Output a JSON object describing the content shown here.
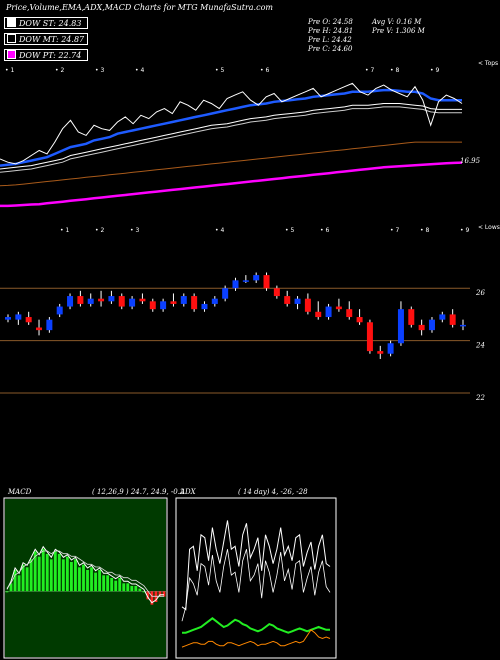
{
  "header": {
    "title": "Price,Volume,EMA,ADX,MACD Charts for MTG MunafaSutra.com"
  },
  "legend": [
    {
      "label": "DOW ST: 24.83",
      "color": "#ffffff"
    },
    {
      "label": "DOW MT: 24.87",
      "color": "#000000"
    },
    {
      "label": "DOW PT: 22.74",
      "color": "#ff00ff"
    }
  ],
  "quote": {
    "open": "Pre  O: 24.58",
    "high": "Pre  H: 24.81",
    "low": "Pre  L: 24.42",
    "close": "Pre  C: 24.60",
    "avg_vol": "Avg V: 0.16  M",
    "pre_vol": "Pre  V: 1.306  M"
  },
  "colors": {
    "up": "#0b40ff",
    "down": "#ff1010",
    "line": "#8a5a2a",
    "ema_fast": "#1e5bff",
    "ema_slow": "#ff00ff"
  },
  "chart_data": [
    {
      "type": "line",
      "name": "EMA panel",
      "right_top_label": "< Tops",
      "right_bottom_label": "< Lows",
      "price_label": "16.95",
      "x": [
        0,
        1,
        2,
        3,
        4,
        5,
        6,
        7,
        8,
        9,
        10,
        11,
        12,
        13,
        14,
        15,
        16,
        17,
        18,
        19,
        20,
        21,
        22,
        23,
        24,
        25,
        26,
        27,
        28,
        29,
        30,
        31,
        32,
        33,
        34,
        35,
        36,
        37,
        38,
        39,
        40,
        41,
        42,
        43,
        44,
        45,
        46,
        47,
        48,
        49,
        50,
        51,
        52,
        53,
        54,
        55,
        56,
        57,
        58,
        59
      ],
      "series": [
        {
          "key": "price",
          "values": [
            10,
            8,
            7,
            9,
            12,
            15,
            13,
            20,
            28,
            33,
            26,
            24,
            30,
            28,
            27,
            32,
            35,
            31,
            36,
            34,
            38,
            40,
            37,
            44,
            42,
            39,
            45,
            43,
            40,
            46,
            48,
            50,
            45,
            42,
            47,
            49,
            44,
            46,
            48,
            50,
            52,
            47,
            49,
            51,
            53,
            55,
            50,
            48,
            52,
            54,
            51,
            49,
            47,
            53,
            45,
            30,
            44,
            48,
            46,
            43
          ]
        },
        {
          "key": "ema_fast",
          "values": [
            6,
            6.5,
            7,
            8,
            9,
            10,
            11,
            13,
            15,
            17,
            18,
            19,
            21,
            22,
            23,
            25,
            26,
            27,
            28,
            29,
            30,
            31,
            32,
            33,
            34,
            35,
            36,
            37,
            38,
            39,
            40,
            41,
            42,
            42.5,
            43,
            44,
            44.5,
            45,
            45.5,
            46,
            47,
            47.5,
            48,
            48.5,
            49,
            50,
            50,
            50,
            50.5,
            51,
            51,
            50.5,
            50,
            50,
            49,
            46,
            45,
            45,
            45,
            45
          ]
        },
        {
          "key": "ema_mid",
          "values": [
            4,
            4.5,
            5,
            5.5,
            6,
            7,
            8,
            9,
            10,
            12,
            13,
            14,
            15,
            16,
            17,
            18,
            19,
            20,
            21,
            22,
            23,
            24,
            25,
            26,
            27,
            28,
            29,
            30,
            30.5,
            31,
            32,
            33,
            34,
            34.5,
            35,
            36,
            36.5,
            37,
            37.5,
            38,
            39,
            39.5,
            40,
            40.5,
            41,
            42,
            42,
            42,
            42.5,
            43,
            43,
            43,
            42.5,
            42,
            41.5,
            40,
            39.5,
            39.5,
            39.5,
            39.5
          ]
        },
        {
          "key": "ema_slow",
          "values": [
            -18,
            -18,
            -17.8,
            -17.5,
            -17.2,
            -17,
            -16.5,
            -16,
            -15.5,
            -15,
            -14.5,
            -14,
            -13.5,
            -13,
            -12.5,
            -12,
            -11.5,
            -11,
            -10.5,
            -10,
            -9.5,
            -9,
            -8.5,
            -8,
            -7.5,
            -7,
            -6.5,
            -6,
            -5.5,
            -5,
            -4.5,
            -4,
            -3.5,
            -3,
            -2.5,
            -2,
            -1.5,
            -1,
            -0.5,
            0,
            0.5,
            1,
            1.5,
            2,
            2.5,
            3,
            3.5,
            4,
            4.5,
            5,
            5.3,
            5.6,
            5.9,
            6.2,
            6.5,
            6.8,
            7.1,
            7.4,
            7.6,
            7.8
          ]
        },
        {
          "key": "ema_brown",
          "values": [
            -6,
            -5.8,
            -5.5,
            -5,
            -4.5,
            -4,
            -3.5,
            -3,
            -2.5,
            -2,
            -1.5,
            -1,
            -0.5,
            0,
            0.5,
            1,
            1.5,
            2,
            2.5,
            3,
            3.5,
            4,
            4.5,
            5,
            5.5,
            6,
            6.5,
            7,
            7.5,
            8,
            8.5,
            9,
            9.5,
            10,
            10.5,
            11,
            11.5,
            12,
            12.5,
            13,
            13.5,
            14,
            14.5,
            15,
            15.5,
            16,
            16.5,
            17,
            17.5,
            18,
            18.5,
            19,
            19.5,
            20,
            20,
            20,
            20,
            20,
            20,
            20
          ]
        }
      ]
    },
    {
      "type": "candlestick",
      "name": "price",
      "yticks": [
        "26",
        "24",
        "22"
      ],
      "ylim": [
        21.2,
        27.0
      ],
      "candles": [
        [
          0,
          24.8,
          25.0,
          24.7,
          24.9
        ],
        [
          1,
          24.8,
          25.1,
          24.6,
          25.0
        ],
        [
          2,
          24.9,
          25.1,
          24.6,
          24.7
        ],
        [
          3,
          24.5,
          24.8,
          24.2,
          24.4
        ],
        [
          4,
          24.4,
          24.9,
          24.3,
          24.8
        ],
        [
          5,
          25.0,
          25.4,
          24.9,
          25.3
        ],
        [
          6,
          25.3,
          25.8,
          25.2,
          25.7
        ],
        [
          7,
          25.7,
          25.9,
          25.3,
          25.4
        ],
        [
          8,
          25.4,
          25.8,
          25.3,
          25.6
        ],
        [
          9,
          25.6,
          25.9,
          25.3,
          25.5
        ],
        [
          10,
          25.5,
          25.9,
          25.4,
          25.7
        ],
        [
          11,
          25.7,
          25.8,
          25.2,
          25.3
        ],
        [
          12,
          25.3,
          25.7,
          25.2,
          25.6
        ],
        [
          13,
          25.6,
          25.8,
          25.4,
          25.5
        ],
        [
          14,
          25.5,
          25.6,
          25.1,
          25.2
        ],
        [
          15,
          25.2,
          25.6,
          25.1,
          25.5
        ],
        [
          16,
          25.5,
          25.8,
          25.3,
          25.4
        ],
        [
          17,
          25.4,
          25.8,
          25.3,
          25.7
        ],
        [
          18,
          25.7,
          25.8,
          25.1,
          25.2
        ],
        [
          19,
          25.2,
          25.5,
          25.1,
          25.4
        ],
        [
          20,
          25.4,
          25.7,
          25.3,
          25.6
        ],
        [
          21,
          25.6,
          26.1,
          25.5,
          26.0
        ],
        [
          22,
          26.0,
          26.4,
          25.9,
          26.3
        ],
        [
          23,
          26.3,
          26.5,
          26.2,
          26.3
        ],
        [
          24,
          26.3,
          26.6,
          26.2,
          26.5
        ],
        [
          25,
          26.5,
          26.6,
          25.9,
          26.0
        ],
        [
          26,
          26.0,
          26.1,
          25.6,
          25.7
        ],
        [
          27,
          25.7,
          25.9,
          25.3,
          25.4
        ],
        [
          28,
          25.4,
          25.7,
          25.2,
          25.6
        ],
        [
          29,
          25.6,
          25.8,
          25.0,
          25.1
        ],
        [
          30,
          25.1,
          25.5,
          24.8,
          24.9
        ],
        [
          31,
          24.9,
          25.4,
          24.8,
          25.3
        ],
        [
          32,
          25.3,
          25.6,
          25.1,
          25.2
        ],
        [
          33,
          25.2,
          25.5,
          24.8,
          24.9
        ],
        [
          34,
          24.9,
          25.2,
          24.6,
          24.7
        ],
        [
          35,
          24.7,
          24.8,
          23.5,
          23.6
        ],
        [
          36,
          23.6,
          23.8,
          23.3,
          23.5
        ],
        [
          37,
          23.5,
          24.0,
          23.4,
          23.9
        ],
        [
          38,
          23.9,
          25.5,
          23.8,
          25.2
        ],
        [
          39,
          25.2,
          25.3,
          24.5,
          24.6
        ],
        [
          40,
          24.6,
          24.8,
          24.2,
          24.4
        ],
        [
          41,
          24.4,
          24.9,
          24.3,
          24.8
        ],
        [
          42,
          24.8,
          25.1,
          24.7,
          25.0
        ],
        [
          43,
          25.0,
          25.2,
          24.5,
          24.6
        ],
        [
          44,
          24.6,
          24.8,
          24.4,
          24.6
        ]
      ]
    },
    {
      "type": "line",
      "name": "MACD",
      "title": "MACD",
      "params": "( 12,26,9 ) 24.7,  24.9,  -0.2",
      "macd": [
        0.0,
        0.3,
        0.8,
        0.6,
        1.0,
        0.9,
        1.2,
        1.5,
        1.3,
        1.6,
        1.4,
        1.2,
        1.5,
        1.4,
        1.2,
        1.3,
        1.1,
        1.2,
        0.9,
        1.0,
        0.8,
        0.9,
        0.7,
        0.8,
        0.6,
        0.6,
        0.5,
        0.4,
        0.5,
        0.3,
        0.3,
        0.2,
        0.2,
        0.1,
        0.0,
        -0.3,
        -0.5,
        -0.4,
        -0.2,
        -0.2
      ],
      "signal": [
        0.0,
        0.2,
        0.5,
        0.6,
        0.8,
        0.9,
        1.0,
        1.2,
        1.3,
        1.4,
        1.4,
        1.3,
        1.4,
        1.4,
        1.3,
        1.3,
        1.2,
        1.2,
        1.1,
        1.0,
        0.9,
        0.9,
        0.8,
        0.8,
        0.7,
        0.6,
        0.6,
        0.5,
        0.5,
        0.4,
        0.4,
        0.3,
        0.3,
        0.2,
        0.1,
        -0.1,
        -0.3,
        -0.3,
        -0.3,
        -0.3
      ],
      "ylim": [
        -2.5,
        3.5
      ]
    },
    {
      "type": "line",
      "name": "ADX",
      "title": "ADX",
      "params": "( 14  day) 4,  -26,  -28",
      "plus_di": [
        30,
        28,
        70,
        72,
        55,
        80,
        78,
        62,
        85,
        70,
        60,
        75,
        90,
        70,
        72,
        58,
        80,
        88,
        64,
        70,
        78,
        55,
        80,
        72,
        60,
        70,
        85,
        66,
        72,
        62,
        78,
        80,
        58,
        68,
        75,
        56,
        72,
        80,
        60,
        58
      ],
      "minus_di": [
        20,
        30,
        50,
        46,
        38,
        60,
        58,
        45,
        66,
        48,
        40,
        58,
        70,
        52,
        54,
        40,
        62,
        70,
        48,
        52,
        60,
        36,
        62,
        54,
        40,
        52,
        68,
        48,
        56,
        42,
        60,
        62,
        40,
        50,
        58,
        38,
        54,
        62,
        44,
        40
      ],
      "adx": [
        12,
        12,
        13,
        14,
        15,
        16,
        18,
        20,
        22,
        20,
        18,
        16,
        17,
        19,
        21,
        20,
        18,
        17,
        15,
        14,
        13,
        14,
        16,
        18,
        17,
        15,
        14,
        13,
        12,
        13,
        14,
        15,
        14,
        13,
        14,
        15,
        16,
        15,
        14,
        14
      ],
      "adx_level": [
        2,
        3,
        4,
        5,
        5,
        4,
        4,
        6,
        6,
        4,
        3,
        3,
        5,
        5,
        4,
        3,
        4,
        5,
        6,
        5,
        3,
        4,
        4,
        5,
        6,
        5,
        3,
        3,
        4,
        5,
        6,
        5,
        6,
        10,
        14,
        12,
        9,
        8,
        9,
        8
      ],
      "ylim": [
        0,
        100
      ]
    }
  ]
}
